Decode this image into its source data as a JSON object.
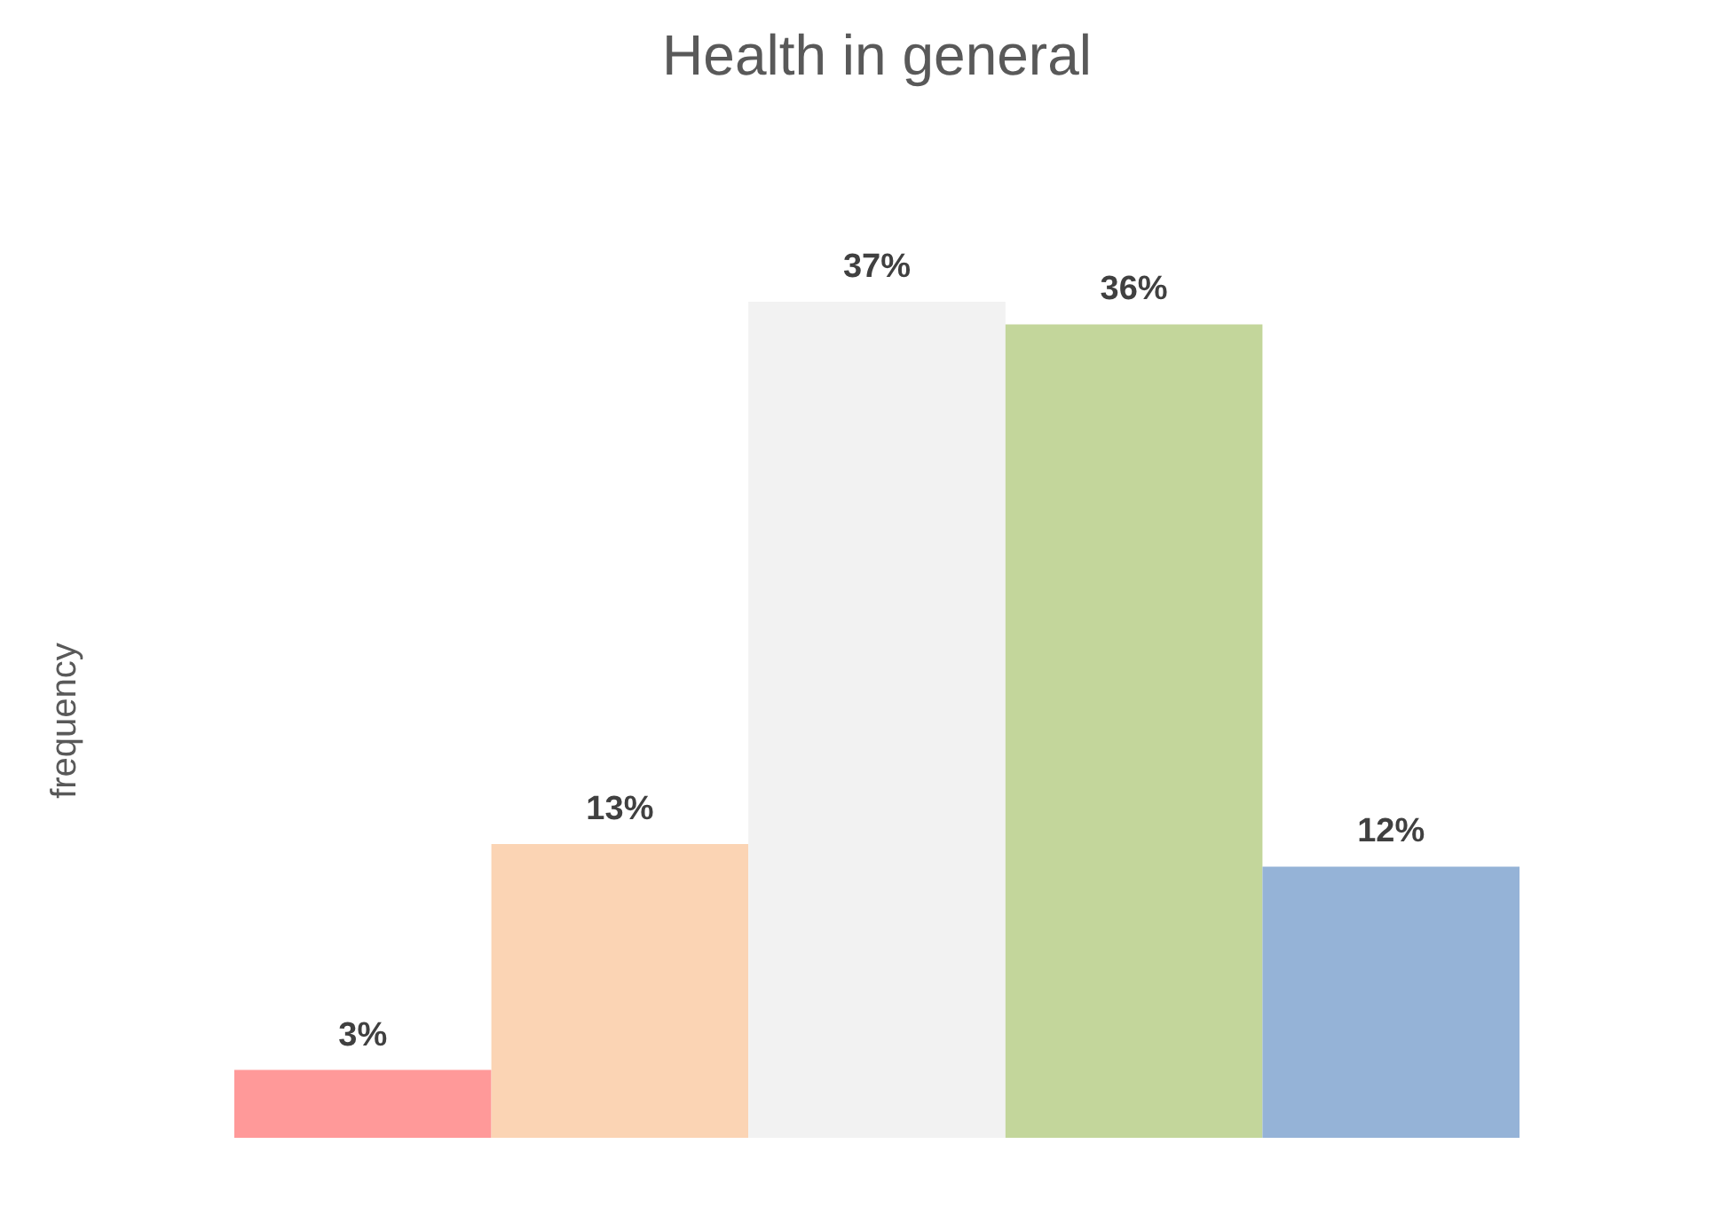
{
  "chart_data": {
    "type": "bar",
    "title": "Health in general",
    "ylabel": "frequency",
    "categories": [
      null,
      null,
      null,
      null,
      null
    ],
    "values": [
      3,
      13,
      37,
      36,
      12
    ],
    "value_labels": [
      "3%",
      "13%",
      "37%",
      "36%",
      "12%"
    ],
    "colors": [
      "#ff9999",
      "#fbd4b4",
      "#f2f2f2",
      "#c3d69b",
      "#95b3d7"
    ]
  }
}
